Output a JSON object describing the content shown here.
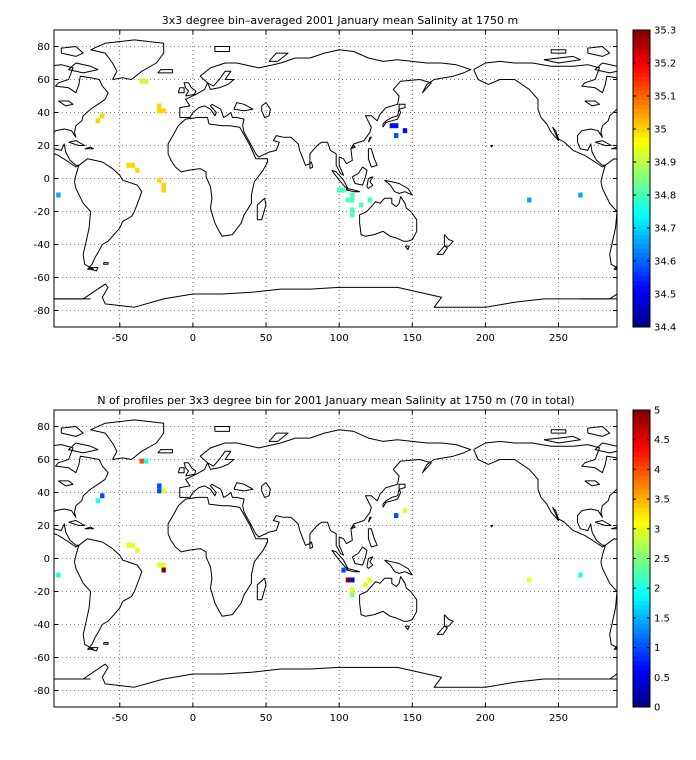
{
  "chart_data": [
    {
      "type": "heatmap",
      "title": "3x3 degree bin–averaged 2001 January mean Salinity at 1750 m",
      "xlabel": "",
      "ylabel": "",
      "xlim": [
        -95,
        290
      ],
      "ylim": [
        -90,
        90
      ],
      "x_ticks": [
        -50,
        0,
        50,
        100,
        150,
        200,
        250
      ],
      "y_ticks": [
        80,
        60,
        40,
        20,
        0,
        -20,
        -40,
        -60,
        -80
      ],
      "grid": true,
      "colorbar": {
        "min": 34.4,
        "max": 35.3,
        "ticks": [
          "35.3",
          "35.2",
          "35.1",
          "35",
          "34.9",
          "34.8",
          "34.7",
          "34.6",
          "34.5",
          "34.4"
        ]
      },
      "cells": [
        {
          "lon": -92,
          "lat": -10,
          "value": 34.66
        },
        {
          "lon": -32,
          "lat": 59,
          "value": 34.91
        },
        {
          "lon": -35,
          "lat": 59,
          "value": 34.91
        },
        {
          "lon": -23,
          "lat": 44,
          "value": 35.0
        },
        {
          "lon": -20,
          "lat": 41,
          "value": 35.0
        },
        {
          "lon": -23,
          "lat": 41,
          "value": 35.0
        },
        {
          "lon": -62,
          "lat": 38,
          "value": 35.0
        },
        {
          "lon": -65,
          "lat": 35,
          "value": 35.0
        },
        {
          "lon": -44,
          "lat": 8,
          "value": 35.0
        },
        {
          "lon": -41,
          "lat": 8,
          "value": 35.0
        },
        {
          "lon": -38,
          "lat": 5,
          "value": 35.0
        },
        {
          "lon": -23,
          "lat": -1,
          "value": 35.0
        },
        {
          "lon": -20,
          "lat": -4,
          "value": 35.0
        },
        {
          "lon": -20,
          "lat": -7,
          "value": 35.0
        },
        {
          "lon": 136,
          "lat": 32,
          "value": 34.52
        },
        {
          "lon": 139,
          "lat": 32,
          "value": 34.52
        },
        {
          "lon": 145,
          "lat": 29,
          "value": 34.52
        },
        {
          "lon": 139,
          "lat": 26,
          "value": 34.58
        },
        {
          "lon": 100,
          "lat": -7,
          "value": 34.8
        },
        {
          "lon": 103,
          "lat": -7,
          "value": 34.8
        },
        {
          "lon": 109,
          "lat": -10,
          "value": 34.8
        },
        {
          "lon": 106,
          "lat": -13,
          "value": 34.8
        },
        {
          "lon": 109,
          "lat": -13,
          "value": 34.8
        },
        {
          "lon": 121,
          "lat": -13,
          "value": 34.8
        },
        {
          "lon": 115,
          "lat": -16,
          "value": 34.8
        },
        {
          "lon": 109,
          "lat": -19,
          "value": 34.8
        },
        {
          "lon": 109,
          "lat": -22,
          "value": 34.8
        },
        {
          "lon": 230,
          "lat": -13,
          "value": 34.66
        },
        {
          "lon": 265,
          "lat": -10,
          "value": 34.66
        }
      ]
    },
    {
      "type": "heatmap",
      "title": "N of profiles per 3x3 degree bin for 2001 January mean Salinity at 1750 m (70 in total)",
      "xlabel": "",
      "ylabel": "",
      "xlim": [
        -95,
        290
      ],
      "ylim": [
        -90,
        90
      ],
      "x_ticks": [
        -50,
        0,
        50,
        100,
        150,
        200,
        250
      ],
      "y_ticks": [
        80,
        60,
        40,
        20,
        0,
        -20,
        -40,
        -60,
        -80
      ],
      "grid": true,
      "colorbar": {
        "min": 0,
        "max": 5,
        "ticks": [
          "5",
          "4.5",
          "4",
          "3.5",
          "3",
          "2.5",
          "2",
          "1.5",
          "1",
          "0.5",
          "0"
        ]
      },
      "cells": [
        {
          "lon": -92,
          "lat": -10,
          "value": 2
        },
        {
          "lon": -35,
          "lat": 59,
          "value": 4
        },
        {
          "lon": -32,
          "lat": 59,
          "value": 2
        },
        {
          "lon": -23,
          "lat": 44,
          "value": 1
        },
        {
          "lon": -23,
          "lat": 41,
          "value": 1
        },
        {
          "lon": -20,
          "lat": 41,
          "value": 3
        },
        {
          "lon": -62,
          "lat": 38,
          "value": 1
        },
        {
          "lon": -65,
          "lat": 35,
          "value": 2
        },
        {
          "lon": -44,
          "lat": 8,
          "value": 3
        },
        {
          "lon": -41,
          "lat": 8,
          "value": 3
        },
        {
          "lon": -38,
          "lat": 5,
          "value": 3
        },
        {
          "lon": -23,
          "lat": -4,
          "value": 3
        },
        {
          "lon": -20,
          "lat": -4,
          "value": 3
        },
        {
          "lon": -20,
          "lat": -7,
          "value": 5
        },
        {
          "lon": 139,
          "lat": 26,
          "value": 1
        },
        {
          "lon": 145,
          "lat": 29,
          "value": 3
        },
        {
          "lon": 103,
          "lat": -7,
          "value": 1
        },
        {
          "lon": 106,
          "lat": -13,
          "value": 5
        },
        {
          "lon": 109,
          "lat": -13,
          "value": 0.5
        },
        {
          "lon": 121,
          "lat": -13,
          "value": 3
        },
        {
          "lon": 118,
          "lat": -16,
          "value": 3
        },
        {
          "lon": 109,
          "lat": -19,
          "value": 3
        },
        {
          "lon": 109,
          "lat": -22,
          "value": 2.5
        },
        {
          "lon": 230,
          "lat": -13,
          "value": 3
        },
        {
          "lon": 265,
          "lat": -10,
          "value": 2
        }
      ]
    }
  ]
}
